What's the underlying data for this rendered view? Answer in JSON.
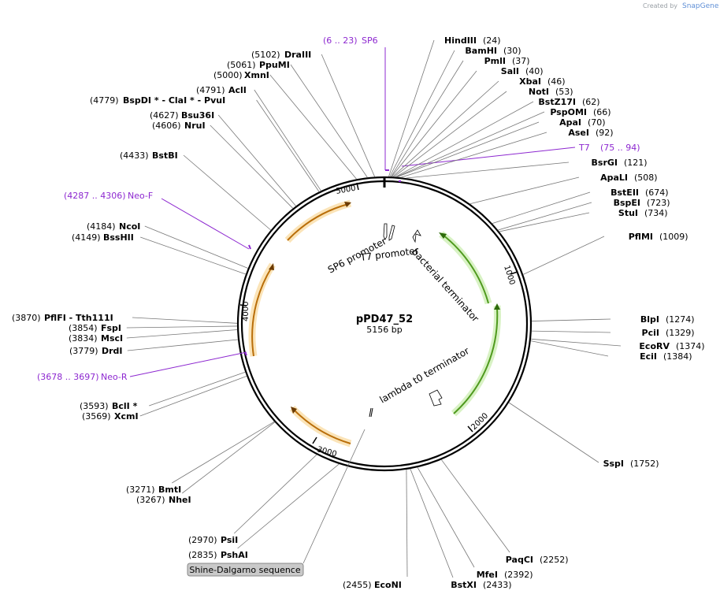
{
  "branding": {
    "created_by": "Created by",
    "brand": "SnapGene"
  },
  "plasmid": {
    "name": "pPD47_52",
    "size_label": "5156 bp"
  },
  "ticks": [
    "1000",
    "2000",
    "3000",
    "4000",
    "5000"
  ],
  "features": [
    {
      "label": "SP6 promoter"
    },
    {
      "label": "T7 promoter"
    },
    {
      "label": "bacterial terminator"
    },
    {
      "label": "lambda t0 terminator"
    }
  ],
  "shine_dalgarno": "Shine-Dalgarno sequence",
  "primers": [
    {
      "pos": "(6 .. 23)",
      "name": "SP6"
    },
    {
      "pos": "(75 .. 94)",
      "name": "T7"
    },
    {
      "pos": "(4287 .. 4306)",
      "name": "Neo-F"
    },
    {
      "pos": "(3678 .. 3697)",
      "name": "Neo-R"
    }
  ],
  "sites_right": [
    {
      "name": "HindIII",
      "pos": "(24)"
    },
    {
      "name": "BamHI",
      "pos": "(30)"
    },
    {
      "name": "PmlI",
      "pos": "(37)"
    },
    {
      "name": "SalI",
      "pos": "(40)"
    },
    {
      "name": "XbaI",
      "pos": "(46)"
    },
    {
      "name": "NotI",
      "pos": "(53)"
    },
    {
      "name": "BstZ17I",
      "pos": "(62)"
    },
    {
      "name": "PspOMI",
      "pos": "(66)"
    },
    {
      "name": "ApaI",
      "pos": "(70)"
    },
    {
      "name": "AseI",
      "pos": "(92)"
    },
    {
      "name": "BsrGI",
      "pos": "(121)"
    },
    {
      "name": "ApaLI",
      "pos": "(508)"
    },
    {
      "name": "BstEII",
      "pos": "(674)"
    },
    {
      "name": "BspEI",
      "pos": "(723)"
    },
    {
      "name": "StuI",
      "pos": "(734)"
    },
    {
      "name": "PflMI",
      "pos": "(1009)"
    },
    {
      "name": "BlpI",
      "pos": "(1274)"
    },
    {
      "name": "PciI",
      "pos": "(1329)"
    },
    {
      "name": "EcoRV",
      "pos": "(1374)"
    },
    {
      "name": "EciI",
      "pos": "(1384)"
    },
    {
      "name": "SspI",
      "pos": "(1752)"
    },
    {
      "name": "PaqCI",
      "pos": "(2252)"
    },
    {
      "name": "MfeI",
      "pos": "(2392)"
    },
    {
      "name": "BstXI",
      "pos": "(2433)"
    }
  ],
  "sites_left": [
    {
      "pos": "(5102)",
      "name": "DraIII"
    },
    {
      "pos": "(5061)",
      "name": "PpuMI"
    },
    {
      "pos": "(5000)",
      "name": "XmnI"
    },
    {
      "pos": "(4791)",
      "name": "AclI"
    },
    {
      "pos": "(4779)",
      "name": "BspDI * - ClaI * - PvuI"
    },
    {
      "pos": "(4627)",
      "name": "Bsu36I"
    },
    {
      "pos": "(4606)",
      "name": "NruI"
    },
    {
      "pos": "(4433)",
      "name": "BstBI"
    },
    {
      "pos": "(4184)",
      "name": "NcoI"
    },
    {
      "pos": "(4149)",
      "name": "BssHII"
    },
    {
      "pos": "(3870)",
      "name": "PflFI - Tth111I"
    },
    {
      "pos": "(3854)",
      "name": "FspI"
    },
    {
      "pos": "(3834)",
      "name": "MscI"
    },
    {
      "pos": "(3779)",
      "name": "DrdI"
    },
    {
      "pos": "(3593)",
      "name": "BclI *"
    },
    {
      "pos": "(3569)",
      "name": "XcmI"
    },
    {
      "pos": "(3271)",
      "name": "BmtI"
    },
    {
      "pos": "(3267)",
      "name": "NheI"
    },
    {
      "pos": "(2970)",
      "name": "PsiI"
    },
    {
      "pos": "(2835)",
      "name": "PshAI"
    },
    {
      "pos": "(2455)",
      "name": "EcoNI"
    }
  ]
}
